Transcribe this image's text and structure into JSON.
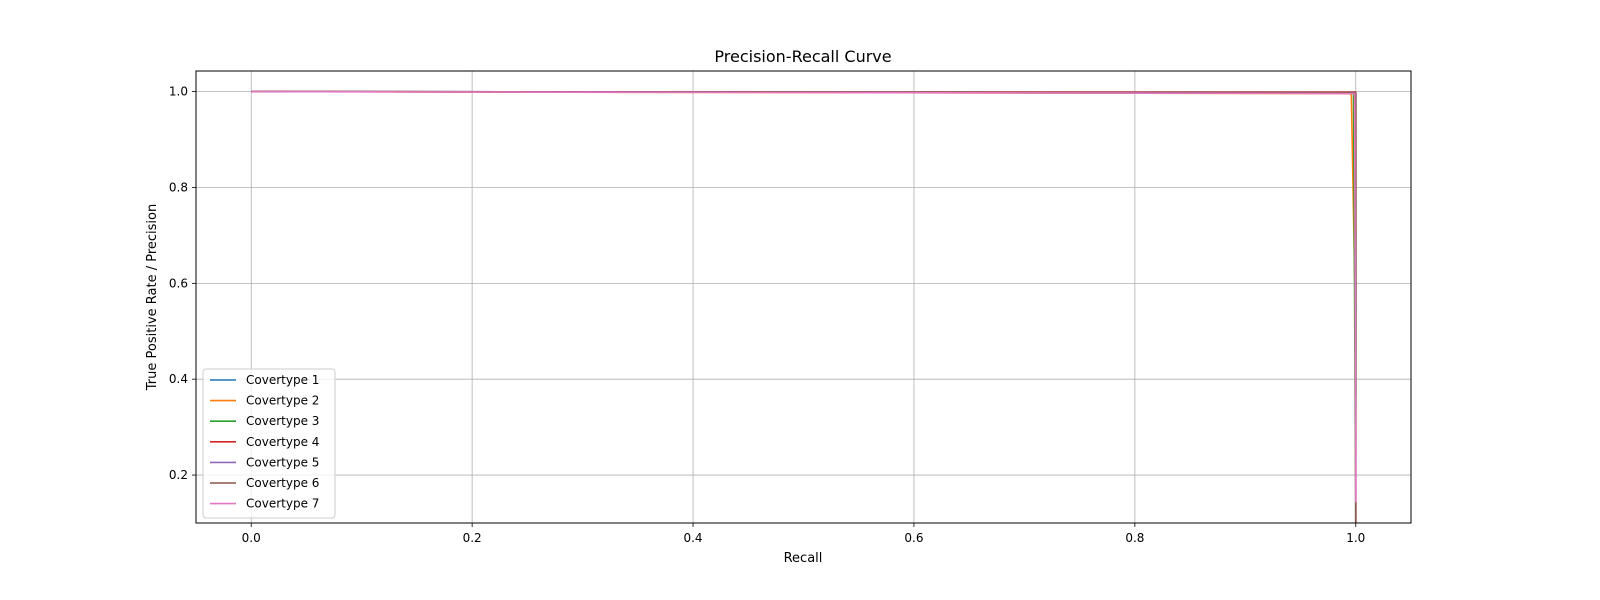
{
  "chart_data": {
    "type": "line",
    "title": "Precision-Recall Curve",
    "xlabel": "Recall",
    "ylabel": "True Positive Rate / Precision",
    "xlim": [
      -0.05,
      1.05
    ],
    "ylim": [
      0.1,
      1.043
    ],
    "xticks": [
      "0.0",
      "0.2",
      "0.4",
      "0.6",
      "0.8",
      "1.0"
    ],
    "yticks": [
      "0.2",
      "0.4",
      "0.6",
      "0.8",
      "1.0"
    ],
    "grid": true,
    "legend_position": "lower left",
    "series": [
      {
        "name": "Covertype 1",
        "color": "#1f77b4",
        "x": [
          0.0,
          0.5,
          0.998,
          1.0,
          1.0
        ],
        "y": [
          1.0,
          0.999,
          0.998,
          0.998,
          0.365
        ]
      },
      {
        "name": "Covertype 2",
        "color": "#ff7f0e",
        "x": [
          0.0,
          0.5,
          0.994,
          0.996,
          1.0
        ],
        "y": [
          1.0,
          0.998,
          0.996,
          0.994,
          0.487
        ]
      },
      {
        "name": "Covertype 3",
        "color": "#2ca02c",
        "x": [
          0.0,
          0.5,
          0.997,
          0.998,
          1.0
        ],
        "y": [
          1.0,
          0.999,
          0.997,
          0.997,
          0.062
        ]
      },
      {
        "name": "Covertype 4",
        "color": "#d62728",
        "x": [
          0.0,
          0.5,
          0.999,
          1.0,
          1.0
        ],
        "y": [
          1.0,
          0.999,
          0.999,
          0.999,
          0.005
        ]
      },
      {
        "name": "Covertype 5",
        "color": "#9467bd",
        "x": [
          0.0,
          0.5,
          0.998,
          1.0,
          1.0
        ],
        "y": [
          1.0,
          0.999,
          0.998,
          0.998,
          0.016
        ]
      },
      {
        "name": "Covertype 6",
        "color": "#8c564b",
        "x": [
          0.0,
          0.5,
          0.998,
          1.0,
          1.0
        ],
        "y": [
          1.0,
          0.999,
          0.998,
          0.998,
          0.03
        ]
      },
      {
        "name": "Covertype 7",
        "color": "#e377c2",
        "x": [
          0.0,
          0.5,
          0.999,
          0.999,
          1.0
        ],
        "y": [
          1.0,
          0.998,
          0.996,
          0.996,
          0.143
        ]
      }
    ]
  }
}
